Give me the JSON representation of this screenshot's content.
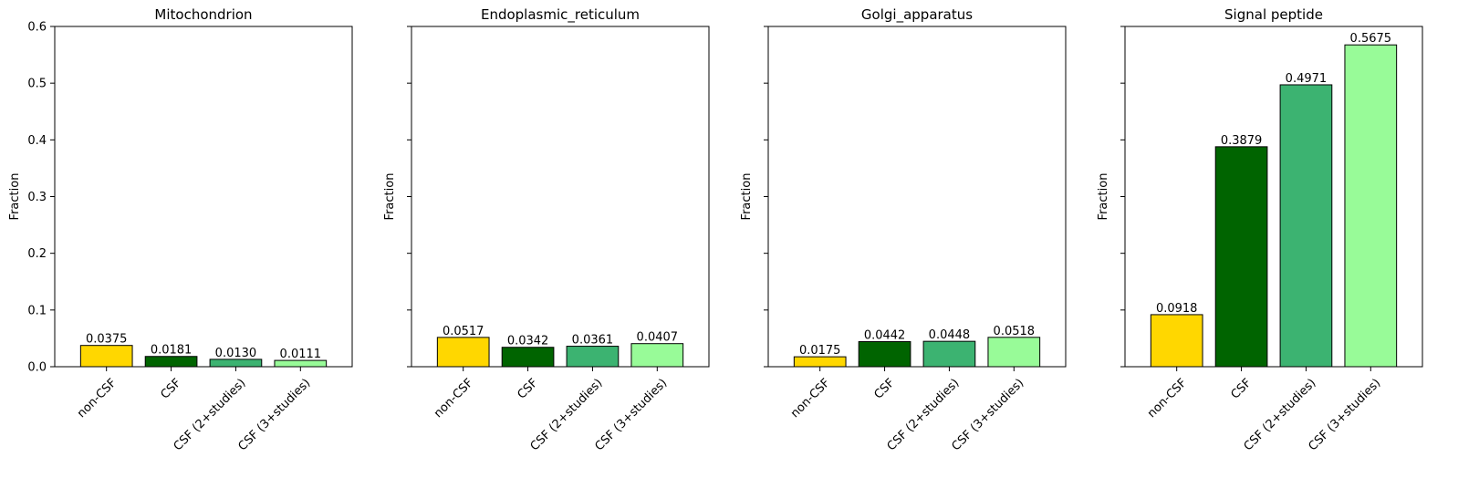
{
  "chart_data": [
    {
      "type": "bar",
      "title": "Mitochondrion",
      "ylabel": "Fraction",
      "categories": [
        "non-CSF",
        "CSF",
        "CSF (2+studies)",
        "CSF (3+studies)"
      ],
      "values": [
        0.0375,
        0.0181,
        0.013,
        0.0111
      ],
      "value_labels": [
        "0.0375",
        "0.0181",
        "0.0130",
        "0.0111"
      ],
      "ylim": [
        0,
        0.6
      ],
      "yticks": [
        "0.0",
        "0.1",
        "0.2",
        "0.3",
        "0.4",
        "0.5",
        "0.6"
      ],
      "show_ytick_labels": true,
      "grid": false
    },
    {
      "type": "bar",
      "title": "Endoplasmic_reticulum",
      "ylabel": "Fraction",
      "categories": [
        "non-CSF",
        "CSF",
        "CSF (2+studies)",
        "CSF (3+studies)"
      ],
      "values": [
        0.0517,
        0.0342,
        0.0361,
        0.0407
      ],
      "value_labels": [
        "0.0517",
        "0.0342",
        "0.0361",
        "0.0407"
      ],
      "ylim": [
        0,
        0.6
      ],
      "show_ytick_labels": false,
      "grid": false
    },
    {
      "type": "bar",
      "title": "Golgi_apparatus",
      "ylabel": "Fraction",
      "categories": [
        "non-CSF",
        "CSF",
        "CSF (2+studies)",
        "CSF (3+studies)"
      ],
      "values": [
        0.0175,
        0.0442,
        0.0448,
        0.0518
      ],
      "value_labels": [
        "0.0175",
        "0.0442",
        "0.0448",
        "0.0518"
      ],
      "ylim": [
        0,
        0.6
      ],
      "show_ytick_labels": false,
      "grid": false
    },
    {
      "type": "bar",
      "title": "Signal peptide",
      "ylabel": "Fraction",
      "categories": [
        "non-CSF",
        "CSF",
        "CSF (2+studies)",
        "CSF (3+studies)"
      ],
      "values": [
        0.0918,
        0.3879,
        0.4971,
        0.5675
      ],
      "value_labels": [
        "0.0918",
        "0.3879",
        "0.4971",
        "0.5675"
      ],
      "ylim": [
        0,
        0.6
      ],
      "show_ytick_labels": false,
      "grid": false
    }
  ],
  "colors": {
    "bars": [
      "#FFD700",
      "#006400",
      "#3CB371",
      "#98FB98"
    ],
    "bar_edge": "#000000"
  }
}
